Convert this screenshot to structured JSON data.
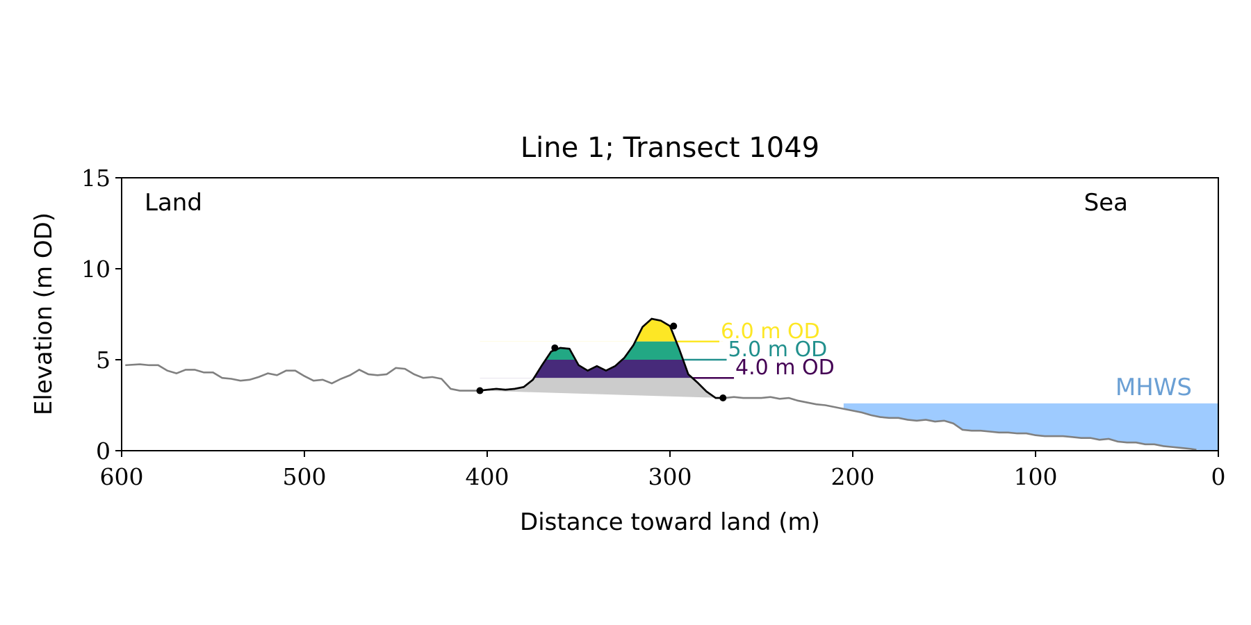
{
  "chart_data": {
    "type": "line",
    "title": "Line 1; Transect 1049",
    "xlabel": "Distance toward land (m)",
    "ylabel": "Elevation (m OD)",
    "xlim": [
      600,
      0
    ],
    "ylim": [
      0,
      15
    ],
    "x_ticks": [
      600,
      500,
      400,
      300,
      200,
      100,
      0
    ],
    "y_ticks": [
      0,
      5,
      10,
      15
    ],
    "grid": false,
    "annotations": {
      "land_label": "Land",
      "sea_label": "Sea",
      "mhws_label": "MHWS"
    },
    "mhws": {
      "elevation": 2.6,
      "x_from": 205,
      "x_to": 0,
      "color": "#9ecbff",
      "label_color": "#6a9fd4"
    },
    "profile": {
      "color": "#808080",
      "x": [
        598,
        590,
        585,
        580,
        575,
        570,
        565,
        560,
        555,
        550,
        545,
        540,
        535,
        530,
        525,
        520,
        515,
        510,
        505,
        500,
        495,
        490,
        485,
        480,
        475,
        470,
        465,
        460,
        455,
        450,
        445,
        440,
        435,
        430,
        425,
        420,
        415,
        410,
        405,
        400,
        395,
        390,
        385,
        380,
        375,
        370,
        365,
        360,
        355,
        350,
        345,
        340,
        335,
        330,
        325,
        320,
        315,
        310,
        305,
        300,
        295,
        290,
        285,
        280,
        275,
        270,
        265,
        260,
        255,
        250,
        245,
        240,
        235,
        230,
        225,
        220,
        215,
        210,
        205,
        200,
        195,
        190,
        185,
        180,
        175,
        170,
        165,
        160,
        155,
        150,
        145,
        140,
        135,
        130,
        125,
        120,
        115,
        110,
        105,
        100,
        95,
        90,
        85,
        80,
        75,
        70,
        65,
        60,
        55,
        50,
        45,
        40,
        35,
        30,
        25,
        20,
        15,
        12
      ],
      "y": [
        4.7,
        4.75,
        4.7,
        4.7,
        4.4,
        4.25,
        4.45,
        4.45,
        4.3,
        4.3,
        4.0,
        3.95,
        3.85,
        3.9,
        4.05,
        4.25,
        4.15,
        4.4,
        4.4,
        4.1,
        3.85,
        3.9,
        3.7,
        3.95,
        4.15,
        4.45,
        4.2,
        4.15,
        4.2,
        4.55,
        4.5,
        4.2,
        4.0,
        4.05,
        3.95,
        3.4,
        3.3,
        3.3,
        3.3,
        3.35,
        3.4,
        3.35,
        3.4,
        3.5,
        3.9,
        4.7,
        5.45,
        5.65,
        5.6,
        4.7,
        4.4,
        4.65,
        4.4,
        4.65,
        5.1,
        5.8,
        6.8,
        7.25,
        7.15,
        6.85,
        5.6,
        4.2,
        3.75,
        3.25,
        2.9,
        2.9,
        2.95,
        2.9,
        2.9,
        2.9,
        2.95,
        2.85,
        2.9,
        2.75,
        2.65,
        2.55,
        2.5,
        2.4,
        2.3,
        2.2,
        2.1,
        1.95,
        1.85,
        1.8,
        1.8,
        1.7,
        1.65,
        1.7,
        1.6,
        1.65,
        1.5,
        1.15,
        1.1,
        1.1,
        1.05,
        1.0,
        1.0,
        0.95,
        0.95,
        0.85,
        0.8,
        0.8,
        0.8,
        0.75,
        0.7,
        0.7,
        0.6,
        0.65,
        0.5,
        0.45,
        0.45,
        0.35,
        0.35,
        0.25,
        0.2,
        0.15,
        0.1,
        0.05
      ]
    },
    "dune": {
      "color": "#000000",
      "x_start": 404,
      "x_end": 271,
      "x": [
        404,
        400,
        395,
        390,
        385,
        380,
        375,
        370,
        365,
        360,
        355,
        350,
        345,
        340,
        335,
        330,
        325,
        320,
        315,
        310,
        305,
        300,
        295,
        290,
        285,
        280,
        275,
        271
      ],
      "y": [
        3.3,
        3.35,
        3.4,
        3.35,
        3.4,
        3.5,
        3.9,
        4.7,
        5.45,
        5.65,
        5.6,
        4.7,
        4.4,
        4.65,
        4.4,
        4.65,
        5.1,
        5.8,
        6.8,
        7.25,
        7.15,
        6.85,
        5.6,
        4.2,
        3.75,
        3.25,
        2.9,
        2.9
      ],
      "markers": [
        {
          "x": 404,
          "y": 3.3
        },
        {
          "x": 363,
          "y": 5.65
        },
        {
          "x": 298,
          "y": 6.85
        },
        {
          "x": 271,
          "y": 2.9
        }
      ]
    },
    "base_fill_color": "#cccccc",
    "levels": [
      {
        "label": "4.0 m OD",
        "elevation": 4.0,
        "color": "#440154",
        "fill": "#472a7a",
        "line_x": 265
      },
      {
        "label": "5.0 m OD",
        "elevation": 5.0,
        "color": "#21908d",
        "fill": "#22a884",
        "line_x": 269
      },
      {
        "label": "6.0 m OD",
        "elevation": 6.0,
        "color": "#fde725",
        "fill": "#fde725",
        "line_x": 273
      }
    ]
  }
}
